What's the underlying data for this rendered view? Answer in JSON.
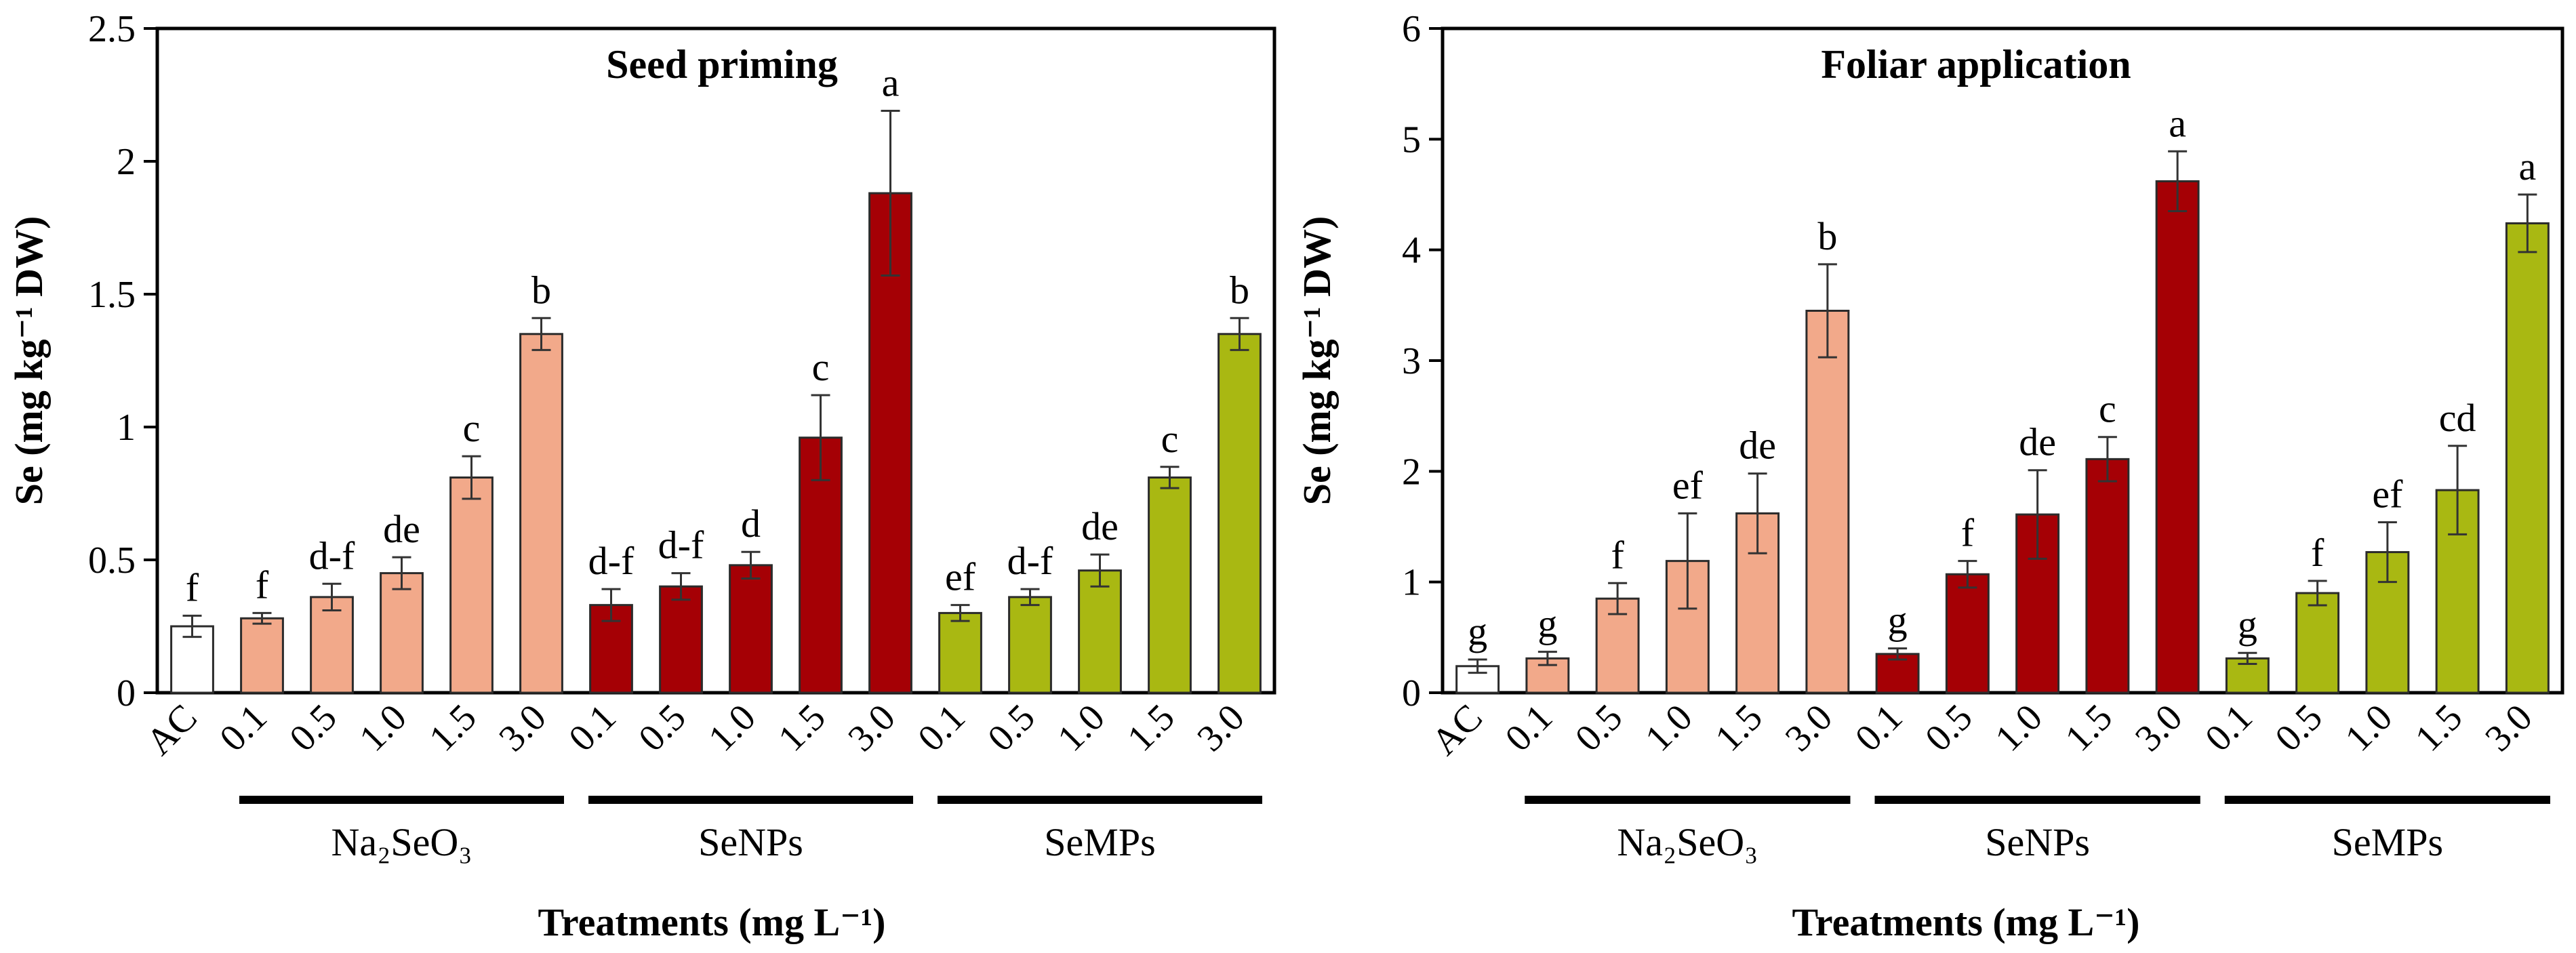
{
  "chart_data": [
    {
      "type": "bar",
      "title": "Seed priming",
      "ylabel": "Se (mg kg⁻¹ DW)",
      "xlabel": "Treatments (mg L⁻¹)",
      "ylim": [
        0,
        2.5
      ],
      "yticks": [
        "0",
        "0.5",
        "1",
        "1.5",
        "2",
        "2.5"
      ],
      "ytick_values": [
        0,
        0.5,
        1,
        1.5,
        2,
        2.5
      ],
      "categories": [
        "AC",
        "0.1",
        "0.5",
        "1.0",
        "1.5",
        "3.0",
        "0.1",
        "0.5",
        "1.0",
        "1.5",
        "3.0",
        "0.1",
        "0.5",
        "1.0",
        "1.5",
        "3.0"
      ],
      "values": [
        0.25,
        0.28,
        0.36,
        0.45,
        0.81,
        1.35,
        0.33,
        0.4,
        0.48,
        0.96,
        1.88,
        0.3,
        0.36,
        0.46,
        0.81,
        1.35
      ],
      "errors": [
        0.04,
        0.02,
        0.05,
        0.06,
        0.08,
        0.06,
        0.06,
        0.05,
        0.05,
        0.16,
        0.31,
        0.03,
        0.03,
        0.06,
        0.04,
        0.06
      ],
      "letters": [
        "f",
        "f",
        "d-f",
        "de",
        "c",
        "b",
        "d-f",
        "d-f",
        "d",
        "c",
        "a",
        "ef",
        "d-f",
        "de",
        "c",
        "b"
      ],
      "groups": [
        {
          "name": "Na₂SeO₃",
          "start": 1,
          "end": 5
        },
        {
          "name": "SeNPs",
          "start": 6,
          "end": 10
        },
        {
          "name": "SeMPs",
          "start": 11,
          "end": 15
        }
      ]
    },
    {
      "type": "bar",
      "title": "Foliar application",
      "ylabel": "Se (mg kg⁻¹ DW)",
      "xlabel": "Treatments (mg L⁻¹)",
      "ylim": [
        0,
        6
      ],
      "yticks": [
        "0",
        "1",
        "2",
        "3",
        "4",
        "5",
        "6"
      ],
      "ytick_values": [
        0,
        1,
        2,
        3,
        4,
        5,
        6
      ],
      "categories": [
        "AC",
        "0.1",
        "0.5",
        "1.0",
        "1.5",
        "3.0",
        "0.1",
        "0.5",
        "1.0",
        "1.5",
        "3.0",
        "0.1",
        "0.5",
        "1.0",
        "1.5",
        "3.0"
      ],
      "values": [
        0.24,
        0.31,
        0.85,
        1.19,
        1.62,
        3.45,
        0.35,
        1.07,
        1.61,
        2.11,
        4.62,
        0.31,
        0.9,
        1.27,
        1.83,
        4.24
      ],
      "errors": [
        0.06,
        0.06,
        0.14,
        0.43,
        0.36,
        0.42,
        0.05,
        0.12,
        0.4,
        0.2,
        0.27,
        0.05,
        0.11,
        0.27,
        0.4,
        0.26
      ],
      "letters": [
        "g",
        "g",
        "f",
        "ef",
        "de",
        "b",
        "g",
        "f",
        "de",
        "c",
        "a",
        "g",
        "f",
        "ef",
        "cd",
        "a"
      ],
      "groups": [
        {
          "name": "Na₂SeO₃",
          "start": 1,
          "end": 5
        },
        {
          "name": "SeNPs",
          "start": 6,
          "end": 10
        },
        {
          "name": "SeMPs",
          "start": 11,
          "end": 15
        }
      ]
    }
  ],
  "colors": {
    "control": "#ffffff",
    "na2seo3": "#f2a98a",
    "senps": "#a50005",
    "semps": "#a9b812",
    "axis": "#000000"
  }
}
